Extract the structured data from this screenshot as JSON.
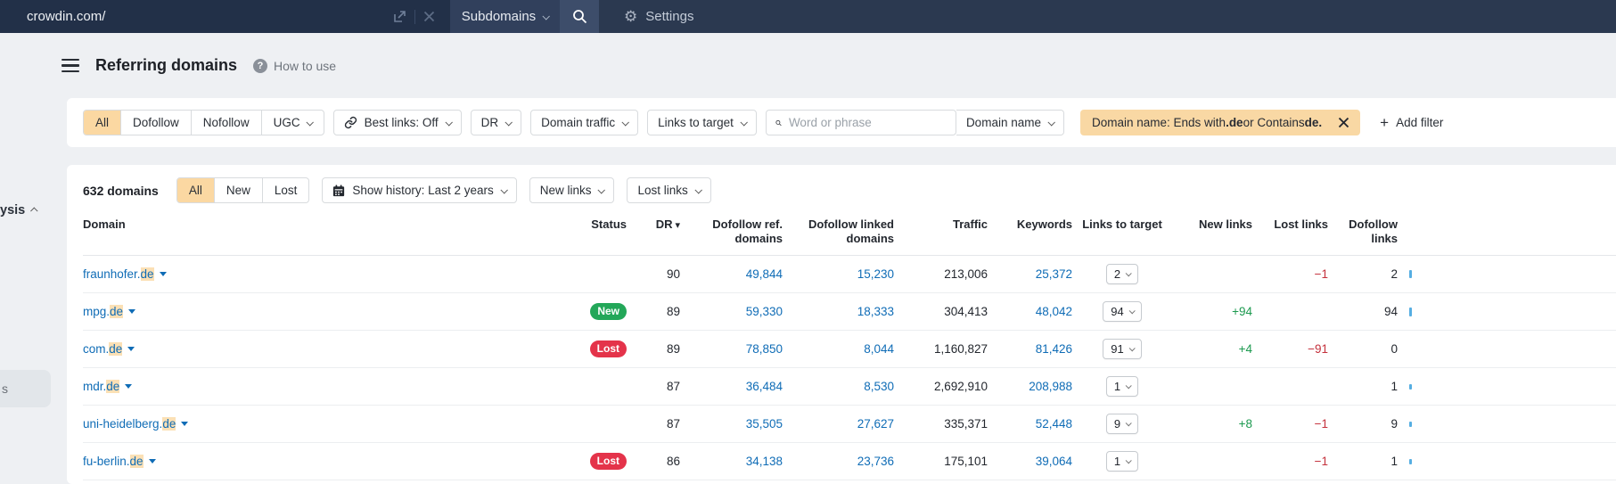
{
  "topbar": {
    "url": "crowdin.com/",
    "mode": "Subdomains",
    "settings": "Settings"
  },
  "header": {
    "title": "Referring domains",
    "help": "How to use"
  },
  "sidebar": {
    "cut_label": "ysis",
    "cut_item": "s"
  },
  "icons": {
    "gear": "⚙",
    "sort_desc": "▾",
    "plus": "+"
  },
  "colors": {
    "accent_orange": "#f9d8a4",
    "link_blue": "#0f6cb6",
    "new_green": "#23a759",
    "lost_red": "#e4334a",
    "pos_green": "#1d9a50",
    "neg_red": "#c4313c",
    "navbar": "#2b3950"
  },
  "filters": {
    "segments": [
      "All",
      "Dofollow",
      "Nofollow",
      "UGC"
    ],
    "active_segment": "All",
    "best_links": "Best links: Off",
    "dr": "DR",
    "domain_traffic": "Domain traffic",
    "links_to_target": "Links to target",
    "search_placeholder": "Word or phrase",
    "domain_name": "Domain name",
    "chip": {
      "t1": "Domain name: Ends with ",
      "b1": ".de",
      "t2": " or Contains ",
      "b2": "de."
    },
    "add_filter": "Add filter"
  },
  "toolbar": {
    "count": "632 domains",
    "segments": [
      "All",
      "New",
      "Lost"
    ],
    "active_segment": "All",
    "show_history": "Show history: Last 2 years",
    "new_links": "New links",
    "lost_links": "Lost links"
  },
  "table": {
    "columns": [
      "Domain",
      "Status",
      "DR",
      "Dofollow ref. domains",
      "Dofollow linked domains",
      "Traffic",
      "Keywords",
      "Links to target",
      "New links",
      "Lost links",
      "Dofollow links"
    ],
    "rows": [
      {
        "domain_pre": "fraunhofer.",
        "domain_hl": "de",
        "status": "",
        "dr": "90",
        "dofollow_ref": "49,844",
        "dofollow_linked": "15,230",
        "traffic": "213,006",
        "keywords": "25,372",
        "links_to_target": "2",
        "new_links": "",
        "lost_links": "−1",
        "dofollow_links": "2",
        "bar": 9
      },
      {
        "domain_pre": "mpg.",
        "domain_hl": "de",
        "status": "New",
        "dr": "89",
        "dofollow_ref": "59,330",
        "dofollow_linked": "18,333",
        "traffic": "304,413",
        "keywords": "48,042",
        "links_to_target": "94",
        "new_links": "+94",
        "lost_links": "",
        "dofollow_links": "94",
        "bar": 10
      },
      {
        "domain_pre": "com.",
        "domain_hl": "de",
        "status": "Lost",
        "dr": "89",
        "dofollow_ref": "78,850",
        "dofollow_linked": "8,044",
        "traffic": "1,160,827",
        "keywords": "81,426",
        "links_to_target": "91",
        "new_links": "+4",
        "lost_links": "−91",
        "dofollow_links": "0",
        "bar": 0
      },
      {
        "domain_pre": "mdr.",
        "domain_hl": "de",
        "status": "",
        "dr": "87",
        "dofollow_ref": "36,484",
        "dofollow_linked": "8,530",
        "traffic": "2,692,910",
        "keywords": "208,988",
        "links_to_target": "1",
        "new_links": "",
        "lost_links": "",
        "dofollow_links": "1",
        "bar": 6
      },
      {
        "domain_pre": "uni-heidelberg.",
        "domain_hl": "de",
        "status": "",
        "dr": "87",
        "dofollow_ref": "35,505",
        "dofollow_linked": "27,627",
        "traffic": "335,371",
        "keywords": "52,448",
        "links_to_target": "9",
        "new_links": "+8",
        "lost_links": "−1",
        "dofollow_links": "9",
        "bar": 6
      },
      {
        "domain_pre": "fu-berlin.",
        "domain_hl": "de",
        "status": "Lost",
        "dr": "86",
        "dofollow_ref": "34,138",
        "dofollow_linked": "23,736",
        "traffic": "175,101",
        "keywords": "39,064",
        "links_to_target": "1",
        "new_links": "",
        "lost_links": "−1",
        "dofollow_links": "1",
        "bar": 6
      }
    ]
  }
}
